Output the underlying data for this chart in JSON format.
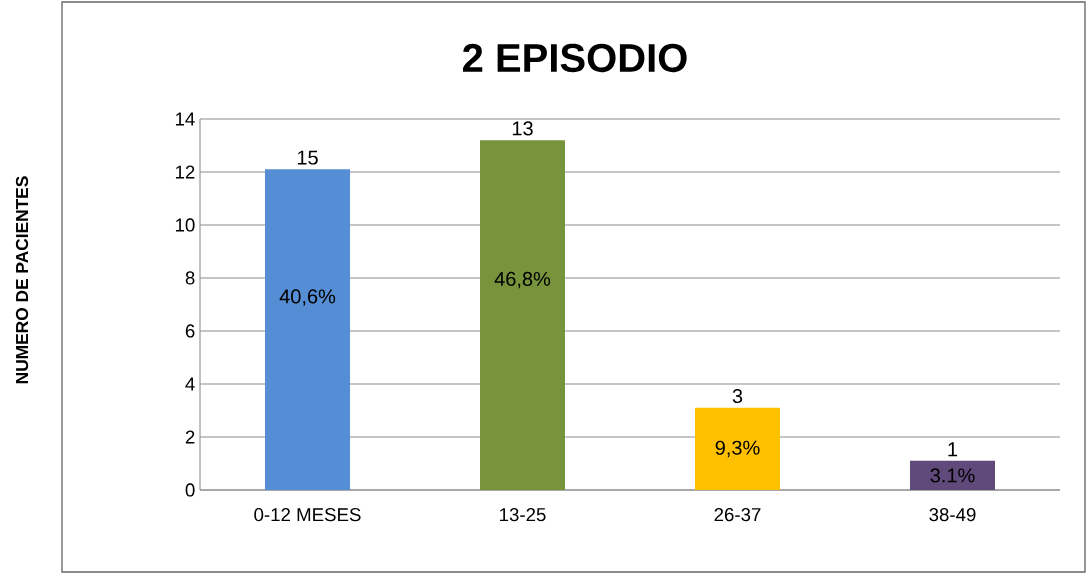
{
  "chart_data": {
    "type": "bar",
    "title": "2 EPISODIO",
    "categories": [
      "0-12 MESES",
      "13-25",
      "26-37",
      "38-49"
    ],
    "values": [
      12.1,
      13.2,
      3.1,
      1.1
    ],
    "colors": [
      "#558ed5",
      "#77933c",
      "#ffc000",
      "#604a7b"
    ],
    "annotations": [
      "NUMERO DE PACIENTES",
      {
        "text": "15",
        "x": "0-12 MESES",
        "y": 12.1
      },
      {
        "text": "13",
        "x": "13-25",
        "y": 13.2
      },
      {
        "text": "3",
        "x": "26-37",
        "y": 3.1
      },
      {
        "text": "1",
        "x": "38-49",
        "y": 1.1
      },
      "40,6%",
      "46,8%",
      "9,3%",
      "3.1%"
    ],
    "ylim": [
      0,
      14
    ],
    "yticks": [
      0,
      2,
      4,
      6,
      8,
      10,
      12,
      14
    ],
    "grid": "y"
  }
}
